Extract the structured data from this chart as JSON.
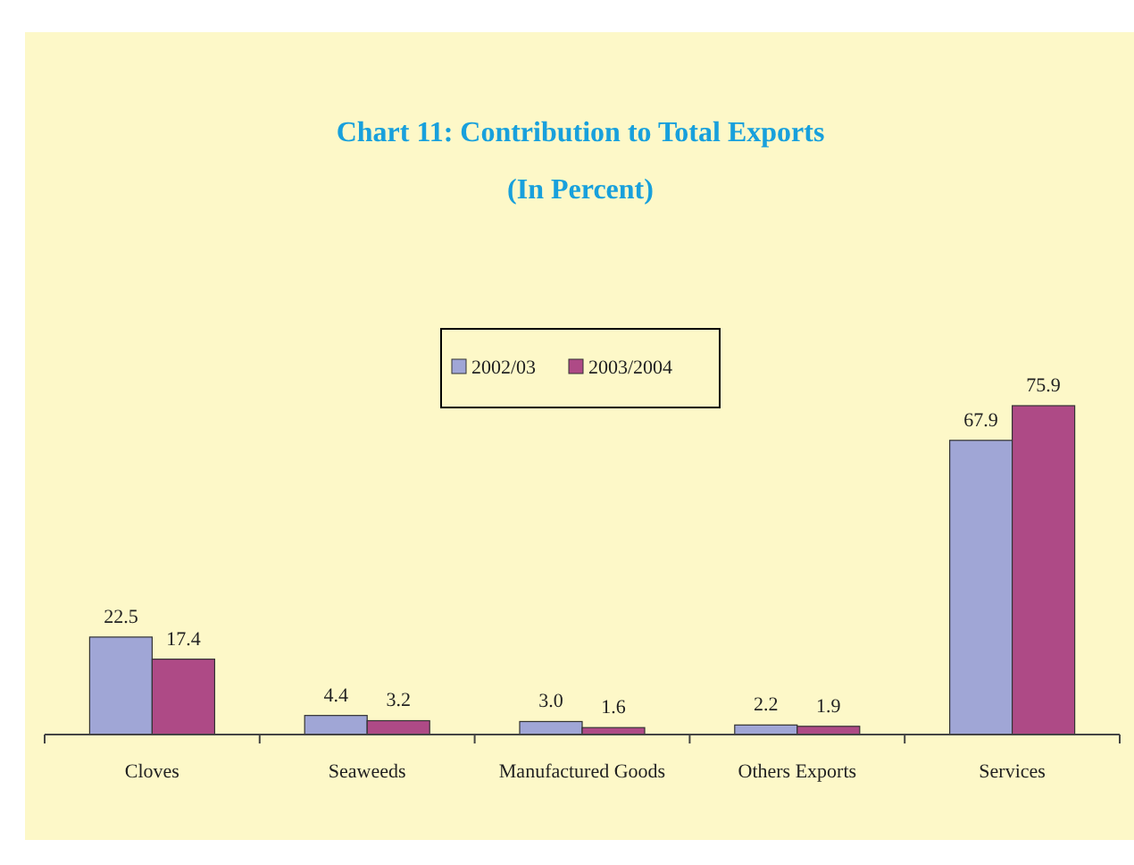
{
  "chart_data": {
    "type": "bar",
    "title": "Chart 11: Contribution to Total Exports",
    "subtitle": "(In Percent)",
    "categories": [
      "Cloves",
      "Seaweeds",
      "Manufactured Goods",
      "Others Exports",
      "Services"
    ],
    "series": [
      {
        "name": "2002/03",
        "color": "#a0a6d6",
        "values": [
          22.5,
          4.4,
          3.0,
          2.2,
          67.9
        ],
        "value_labels": [
          "22.5",
          "4.4",
          "3.0",
          "2.2",
          "67.9"
        ]
      },
      {
        "name": "2003/2004",
        "color": "#ae4a86",
        "values": [
          17.4,
          3.2,
          1.6,
          1.9,
          75.9
        ],
        "value_labels": [
          "17.4",
          "3.2",
          "1.6",
          "1.9",
          "75.9"
        ]
      }
    ],
    "legend": "top"
  }
}
